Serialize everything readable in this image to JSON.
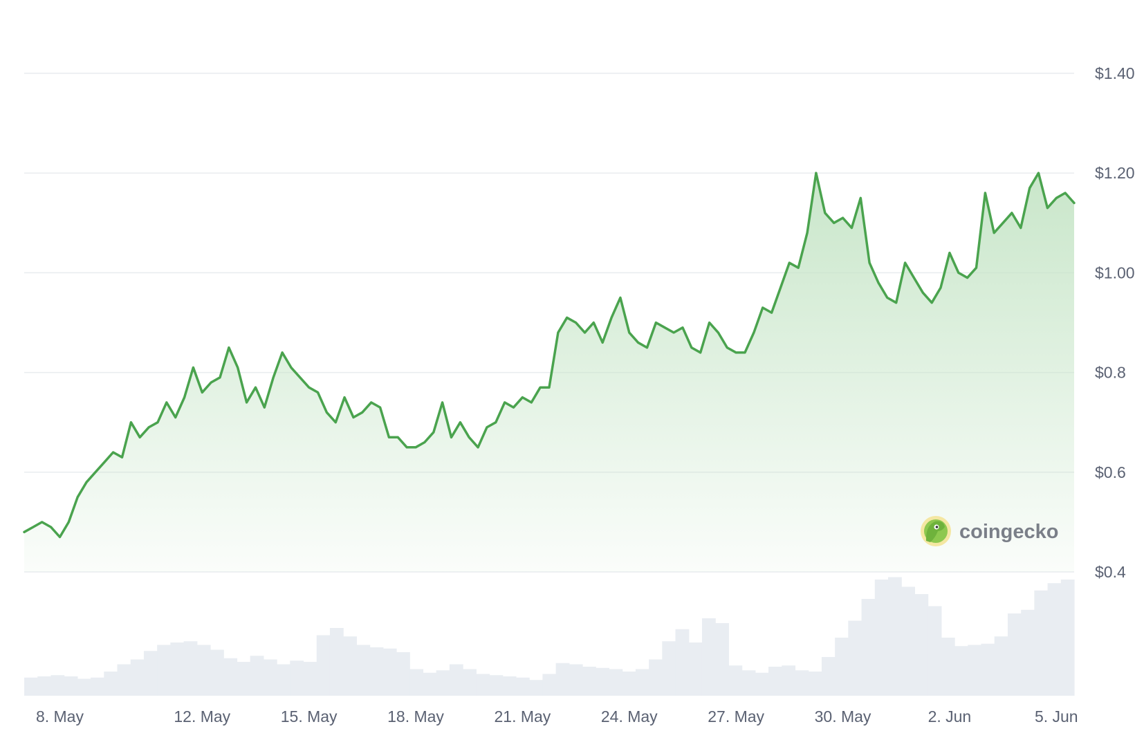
{
  "chart_data": {
    "type": "area",
    "y_unit": "USD",
    "ylim": [
      0.4,
      1.4
    ],
    "yticks": [
      {
        "value": 1.4,
        "label": "$1.40"
      },
      {
        "value": 1.2,
        "label": "$1.20"
      },
      {
        "value": 1.0,
        "label": "$1.00"
      },
      {
        "value": 0.8,
        "label": "$0.8"
      },
      {
        "value": 0.6,
        "label": "$0.6"
      },
      {
        "value": 0.4,
        "label": "$0.4"
      }
    ],
    "xlim": [
      "2024-05-07",
      "2024-06-05T12:00"
    ],
    "xticks": [
      {
        "date": "2024-05-08",
        "label": "8. May"
      },
      {
        "date": "2024-05-12",
        "label": "12. May"
      },
      {
        "date": "2024-05-15",
        "label": "15. May"
      },
      {
        "date": "2024-05-18",
        "label": "18. May"
      },
      {
        "date": "2024-05-21",
        "label": "21. May"
      },
      {
        "date": "2024-05-24",
        "label": "24. May"
      },
      {
        "date": "2024-05-27",
        "label": "27. May"
      },
      {
        "date": "2024-05-30",
        "label": "30. May"
      },
      {
        "date": "2024-06-02",
        "label": "2. Jun"
      },
      {
        "date": "2024-06-05",
        "label": "5. Jun"
      }
    ],
    "grid": true,
    "series": [
      {
        "kind": "price",
        "color": "#4aa34e",
        "fill_color": "#cfe9d0",
        "points": [
          [
            "2024-05-07T00:00",
            0.48
          ],
          [
            "2024-05-07T06:00",
            0.49
          ],
          [
            "2024-05-07T12:00",
            0.5
          ],
          [
            "2024-05-07T18:00",
            0.49
          ],
          [
            "2024-05-08T00:00",
            0.47
          ],
          [
            "2024-05-08T06:00",
            0.5
          ],
          [
            "2024-05-08T12:00",
            0.55
          ],
          [
            "2024-05-08T18:00",
            0.58
          ],
          [
            "2024-05-09T00:00",
            0.6
          ],
          [
            "2024-05-09T06:00",
            0.62
          ],
          [
            "2024-05-09T12:00",
            0.64
          ],
          [
            "2024-05-09T18:00",
            0.63
          ],
          [
            "2024-05-10T00:00",
            0.7
          ],
          [
            "2024-05-10T06:00",
            0.67
          ],
          [
            "2024-05-10T12:00",
            0.69
          ],
          [
            "2024-05-10T18:00",
            0.7
          ],
          [
            "2024-05-11T00:00",
            0.74
          ],
          [
            "2024-05-11T06:00",
            0.71
          ],
          [
            "2024-05-11T12:00",
            0.75
          ],
          [
            "2024-05-11T18:00",
            0.81
          ],
          [
            "2024-05-12T00:00",
            0.76
          ],
          [
            "2024-05-12T06:00",
            0.78
          ],
          [
            "2024-05-12T12:00",
            0.79
          ],
          [
            "2024-05-12T18:00",
            0.85
          ],
          [
            "2024-05-13T00:00",
            0.81
          ],
          [
            "2024-05-13T06:00",
            0.74
          ],
          [
            "2024-05-13T12:00",
            0.77
          ],
          [
            "2024-05-13T18:00",
            0.73
          ],
          [
            "2024-05-14T00:00",
            0.79
          ],
          [
            "2024-05-14T06:00",
            0.84
          ],
          [
            "2024-05-14T12:00",
            0.81
          ],
          [
            "2024-05-14T18:00",
            0.79
          ],
          [
            "2024-05-15T00:00",
            0.77
          ],
          [
            "2024-05-15T06:00",
            0.76
          ],
          [
            "2024-05-15T12:00",
            0.72
          ],
          [
            "2024-05-15T18:00",
            0.7
          ],
          [
            "2024-05-16T00:00",
            0.75
          ],
          [
            "2024-05-16T06:00",
            0.71
          ],
          [
            "2024-05-16T12:00",
            0.72
          ],
          [
            "2024-05-16T18:00",
            0.74
          ],
          [
            "2024-05-17T00:00",
            0.73
          ],
          [
            "2024-05-17T06:00",
            0.67
          ],
          [
            "2024-05-17T12:00",
            0.67
          ],
          [
            "2024-05-17T18:00",
            0.65
          ],
          [
            "2024-05-18T00:00",
            0.65
          ],
          [
            "2024-05-18T06:00",
            0.66
          ],
          [
            "2024-05-18T12:00",
            0.68
          ],
          [
            "2024-05-18T18:00",
            0.74
          ],
          [
            "2024-05-19T00:00",
            0.67
          ],
          [
            "2024-05-19T06:00",
            0.7
          ],
          [
            "2024-05-19T12:00",
            0.67
          ],
          [
            "2024-05-19T18:00",
            0.65
          ],
          [
            "2024-05-20T00:00",
            0.69
          ],
          [
            "2024-05-20T06:00",
            0.7
          ],
          [
            "2024-05-20T12:00",
            0.74
          ],
          [
            "2024-05-20T18:00",
            0.73
          ],
          [
            "2024-05-21T00:00",
            0.75
          ],
          [
            "2024-05-21T06:00",
            0.74
          ],
          [
            "2024-05-21T12:00",
            0.77
          ],
          [
            "2024-05-21T18:00",
            0.77
          ],
          [
            "2024-05-22T00:00",
            0.88
          ],
          [
            "2024-05-22T06:00",
            0.91
          ],
          [
            "2024-05-22T12:00",
            0.9
          ],
          [
            "2024-05-22T18:00",
            0.88
          ],
          [
            "2024-05-23T00:00",
            0.9
          ],
          [
            "2024-05-23T06:00",
            0.86
          ],
          [
            "2024-05-23T12:00",
            0.91
          ],
          [
            "2024-05-23T18:00",
            0.95
          ],
          [
            "2024-05-24T00:00",
            0.88
          ],
          [
            "2024-05-24T06:00",
            0.86
          ],
          [
            "2024-05-24T12:00",
            0.85
          ],
          [
            "2024-05-24T18:00",
            0.9
          ],
          [
            "2024-05-25T00:00",
            0.89
          ],
          [
            "2024-05-25T06:00",
            0.88
          ],
          [
            "2024-05-25T12:00",
            0.89
          ],
          [
            "2024-05-25T18:00",
            0.85
          ],
          [
            "2024-05-26T00:00",
            0.84
          ],
          [
            "2024-05-26T06:00",
            0.9
          ],
          [
            "2024-05-26T12:00",
            0.88
          ],
          [
            "2024-05-26T18:00",
            0.85
          ],
          [
            "2024-05-27T00:00",
            0.84
          ],
          [
            "2024-05-27T06:00",
            0.84
          ],
          [
            "2024-05-27T12:00",
            0.88
          ],
          [
            "2024-05-27T18:00",
            0.93
          ],
          [
            "2024-05-28T00:00",
            0.92
          ],
          [
            "2024-05-28T06:00",
            0.97
          ],
          [
            "2024-05-28T12:00",
            1.02
          ],
          [
            "2024-05-28T18:00",
            1.01
          ],
          [
            "2024-05-29T00:00",
            1.08
          ],
          [
            "2024-05-29T06:00",
            1.2
          ],
          [
            "2024-05-29T12:00",
            1.12
          ],
          [
            "2024-05-29T18:00",
            1.1
          ],
          [
            "2024-05-30T00:00",
            1.11
          ],
          [
            "2024-05-30T06:00",
            1.09
          ],
          [
            "2024-05-30T12:00",
            1.15
          ],
          [
            "2024-05-30T18:00",
            1.02
          ],
          [
            "2024-05-31T00:00",
            0.98
          ],
          [
            "2024-05-31T06:00",
            0.95
          ],
          [
            "2024-05-31T12:00",
            0.94
          ],
          [
            "2024-05-31T18:00",
            1.02
          ],
          [
            "2024-06-01T00:00",
            0.99
          ],
          [
            "2024-06-01T06:00",
            0.96
          ],
          [
            "2024-06-01T12:00",
            0.94
          ],
          [
            "2024-06-01T18:00",
            0.97
          ],
          [
            "2024-06-02T00:00",
            1.04
          ],
          [
            "2024-06-02T06:00",
            1.0
          ],
          [
            "2024-06-02T12:00",
            0.99
          ],
          [
            "2024-06-02T18:00",
            1.01
          ],
          [
            "2024-06-03T00:00",
            1.16
          ],
          [
            "2024-06-03T06:00",
            1.08
          ],
          [
            "2024-06-03T12:00",
            1.1
          ],
          [
            "2024-06-03T18:00",
            1.12
          ],
          [
            "2024-06-04T00:00",
            1.09
          ],
          [
            "2024-06-04T06:00",
            1.17
          ],
          [
            "2024-06-04T12:00",
            1.2
          ],
          [
            "2024-06-04T18:00",
            1.13
          ],
          [
            "2024-06-05T00:00",
            1.15
          ],
          [
            "2024-06-05T06:00",
            1.16
          ],
          [
            "2024-06-05T12:00",
            1.14
          ]
        ]
      },
      {
        "kind": "volume",
        "color": "#e9edf2",
        "relative_values": [
          0.15,
          0.16,
          0.17,
          0.16,
          0.14,
          0.15,
          0.2,
          0.26,
          0.3,
          0.37,
          0.42,
          0.44,
          0.45,
          0.42,
          0.38,
          0.31,
          0.28,
          0.33,
          0.3,
          0.26,
          0.29,
          0.28,
          0.5,
          0.56,
          0.49,
          0.42,
          0.4,
          0.39,
          0.36,
          0.22,
          0.19,
          0.21,
          0.26,
          0.22,
          0.18,
          0.17,
          0.16,
          0.15,
          0.13,
          0.18,
          0.27,
          0.26,
          0.24,
          0.23,
          0.22,
          0.2,
          0.22,
          0.3,
          0.45,
          0.55,
          0.44,
          0.64,
          0.6,
          0.25,
          0.21,
          0.19,
          0.24,
          0.25,
          0.21,
          0.2,
          0.32,
          0.48,
          0.62,
          0.8,
          0.96,
          0.98,
          0.9,
          0.84,
          0.74,
          0.48,
          0.41,
          0.42,
          0.43,
          0.49,
          0.68,
          0.71,
          0.87,
          0.93,
          0.96
        ]
      }
    ]
  },
  "watermark": {
    "brand": "coingecko",
    "icon": "gecko-logo-icon"
  }
}
